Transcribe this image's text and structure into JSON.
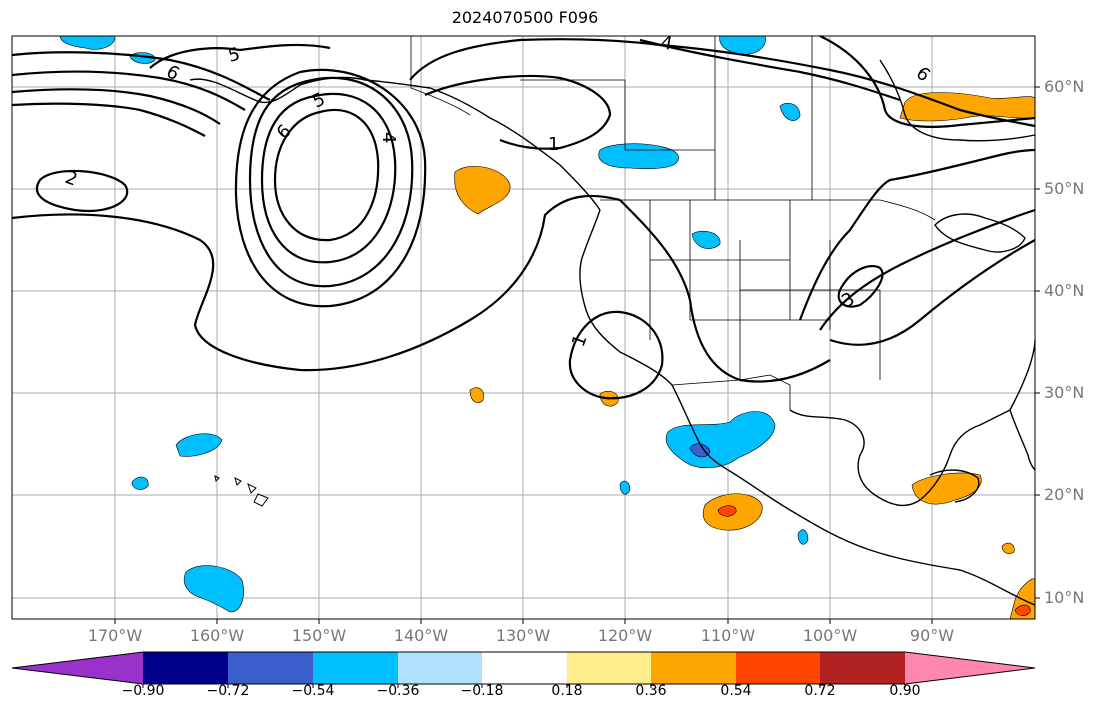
{
  "title": "2024070500 F096",
  "lon_labels": [
    "170°W",
    "160°W",
    "150°W",
    "140°W",
    "130°W",
    "120°W",
    "110°W",
    "100°W",
    "90°W"
  ],
  "lat_labels": [
    "60°N",
    "50°N",
    "40°N",
    "30°N",
    "20°N",
    "10°N"
  ],
  "contour_labels": [
    "5",
    "6",
    "4",
    "5",
    "6",
    "4",
    "1",
    "2",
    "1",
    "3",
    "6"
  ],
  "colorbar": {
    "ticks": [
      "−0.90",
      "−0.72",
      "−0.54",
      "−0.36",
      "−0.18",
      "0.18",
      "0.36",
      "0.54",
      "0.72",
      "0.90"
    ],
    "colors": [
      "#9932cc",
      "#00008b",
      "#3a5fcd",
      "#00bfff",
      "#b0e2ff",
      "#ffffff",
      "#ffec8b",
      "#ffa500",
      "#ff4500",
      "#b22222",
      "#ff86ad"
    ]
  }
}
